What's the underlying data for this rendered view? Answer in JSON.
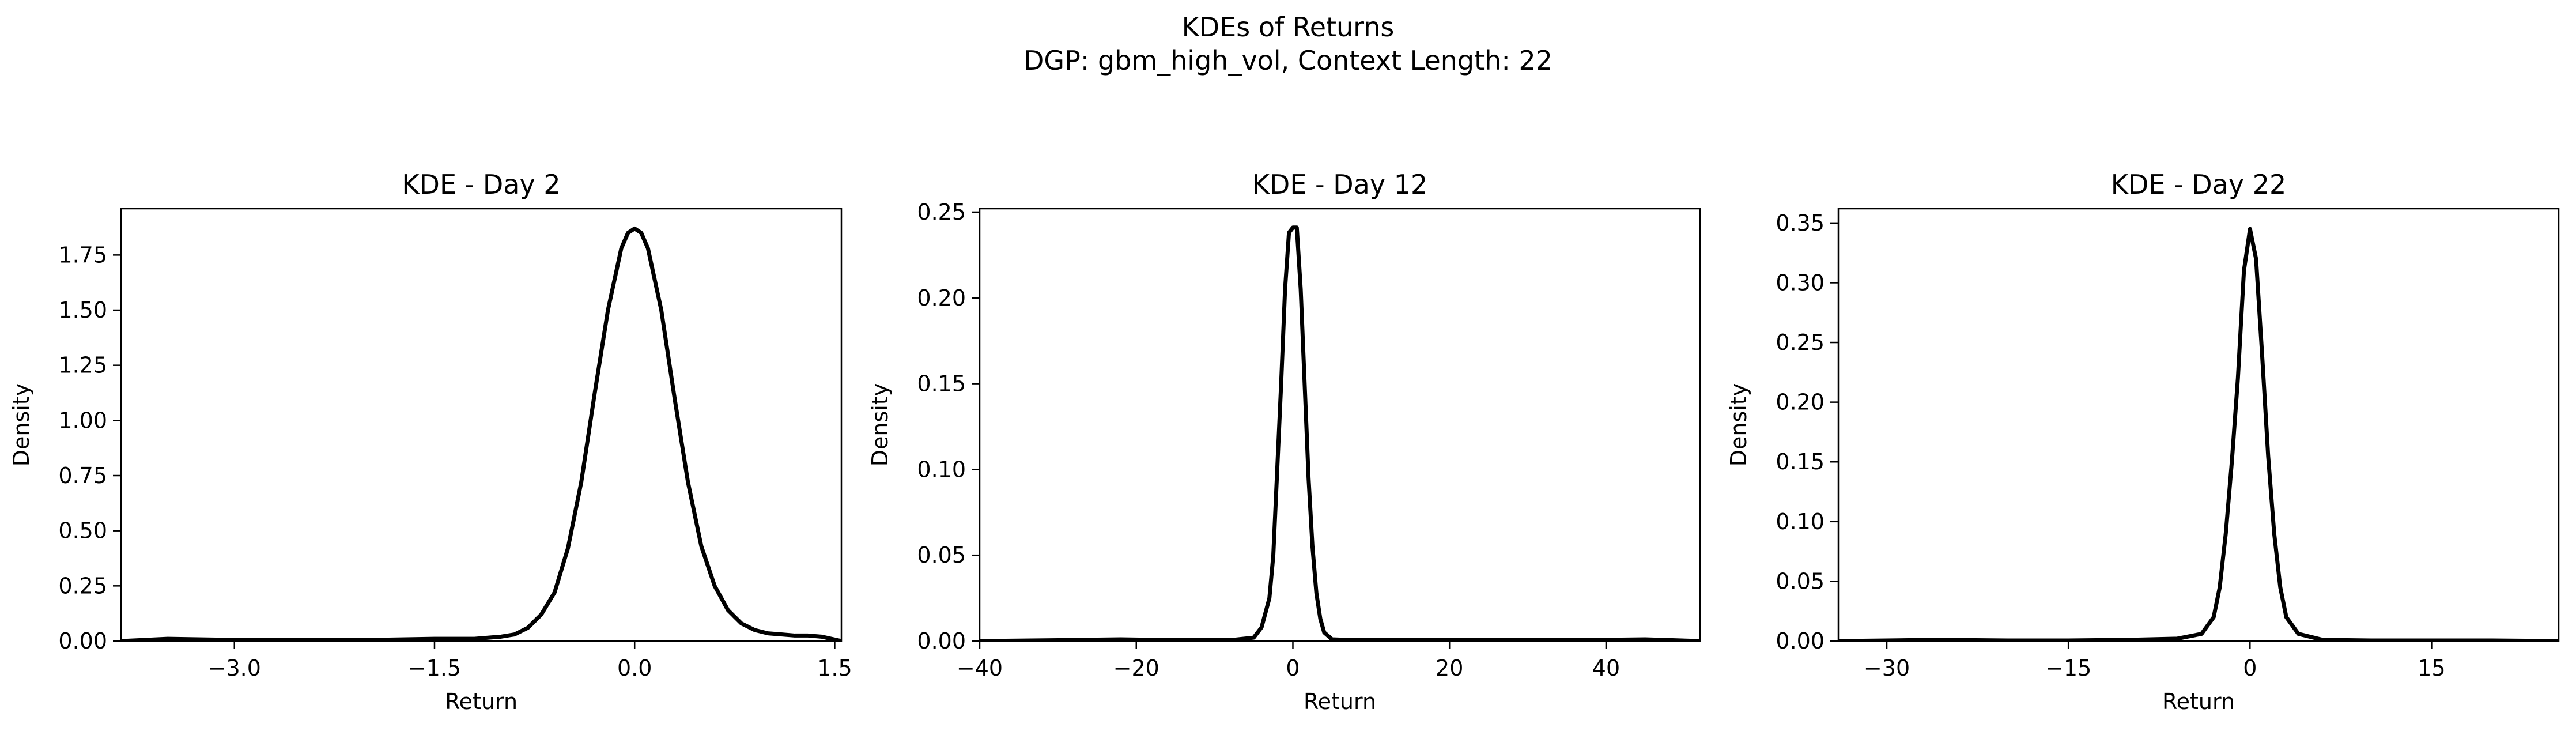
{
  "figure": {
    "title_line1": "KDEs of Returns",
    "title_line2": "DGP: gbm_high_vol, Context Length: 22"
  },
  "chart_data": [
    {
      "type": "line",
      "title": "KDE - Day 2",
      "xlabel": "Return",
      "ylabel": "Density",
      "xlim": [
        -3.85,
        1.55
      ],
      "ylim": [
        0,
        1.96
      ],
      "xticks": [
        -3.0,
        -1.5,
        0.0,
        1.5
      ],
      "xtick_labels": [
        "−3.0",
        "−1.5",
        "0.0",
        "1.5"
      ],
      "yticks": [
        0,
        0.25,
        0.5,
        0.75,
        1.0,
        1.25,
        1.5,
        1.75
      ],
      "ytick_labels": [
        "0.00",
        "0.25",
        "0.50",
        "0.75",
        "1.00",
        "1.25",
        "1.50",
        "1.75"
      ],
      "grid": false,
      "series": [
        {
          "color": "#000000",
          "x": [
            -3.85,
            -3.5,
            -3.0,
            -2.5,
            -2.0,
            -1.5,
            -1.2,
            -1.0,
            -0.9,
            -0.8,
            -0.7,
            -0.6,
            -0.5,
            -0.4,
            -0.3,
            -0.2,
            -0.1,
            -0.05,
            0.0,
            0.05,
            0.1,
            0.2,
            0.3,
            0.4,
            0.5,
            0.6,
            0.7,
            0.8,
            0.9,
            1.0,
            1.1,
            1.2,
            1.3,
            1.4,
            1.55
          ],
          "y": [
            0.0,
            0.01,
            0.005,
            0.005,
            0.005,
            0.01,
            0.01,
            0.02,
            0.03,
            0.06,
            0.12,
            0.22,
            0.42,
            0.72,
            1.12,
            1.5,
            1.78,
            1.85,
            1.87,
            1.85,
            1.78,
            1.5,
            1.1,
            0.72,
            0.43,
            0.25,
            0.14,
            0.08,
            0.05,
            0.035,
            0.03,
            0.025,
            0.025,
            0.02,
            0.0
          ]
        }
      ]
    },
    {
      "type": "line",
      "title": "KDE - Day 12",
      "xlabel": "Return",
      "ylabel": "Density",
      "xlim": [
        -40,
        52
      ],
      "ylim": [
        0,
        0.252
      ],
      "xticks": [
        -40,
        -20,
        0,
        20,
        40
      ],
      "xtick_labels": [
        "−40",
        "−20",
        "0",
        "20",
        "40"
      ],
      "yticks": [
        0,
        0.05,
        0.1,
        0.15,
        0.2,
        0.25
      ],
      "ytick_labels": [
        "0.00",
        "0.05",
        "0.10",
        "0.15",
        "0.20",
        "0.25"
      ],
      "grid": false,
      "series": [
        {
          "color": "#000000",
          "x": [
            -40,
            -30,
            -22,
            -15,
            -8,
            -5,
            -4,
            -3,
            -2.5,
            -2,
            -1.5,
            -1,
            -0.5,
            0,
            0.5,
            1,
            1.5,
            2,
            2.5,
            3,
            3.5,
            4,
            5,
            8,
            15,
            25,
            35,
            45,
            52
          ],
          "y": [
            0.0,
            0.0005,
            0.001,
            0.0005,
            0.0005,
            0.002,
            0.008,
            0.025,
            0.05,
            0.1,
            0.15,
            0.205,
            0.238,
            0.241,
            0.241,
            0.205,
            0.15,
            0.095,
            0.055,
            0.028,
            0.013,
            0.005,
            0.001,
            0.0005,
            0.0005,
            0.0005,
            0.0005,
            0.001,
            0.0
          ]
        }
      ]
    },
    {
      "type": "line",
      "title": "KDE - Day 22",
      "xlabel": "Return",
      "ylabel": "Density",
      "xlim": [
        -34,
        25.5
      ],
      "ylim": [
        0,
        0.362
      ],
      "xticks": [
        -30,
        -15,
        0,
        15
      ],
      "xtick_labels": [
        "−30",
        "−15",
        "0",
        "15"
      ],
      "yticks": [
        0,
        0.05,
        0.1,
        0.15,
        0.2,
        0.25,
        0.3,
        0.35
      ],
      "ytick_labels": [
        "0.00",
        "0.05",
        "0.10",
        "0.15",
        "0.20",
        "0.25",
        "0.30",
        "0.35"
      ],
      "grid": false,
      "series": [
        {
          "color": "#000000",
          "x": [
            -34,
            -30,
            -26,
            -20,
            -15,
            -10,
            -6,
            -4,
            -3,
            -2.5,
            -2,
            -1.5,
            -1,
            -0.5,
            0,
            0.5,
            1,
            1.5,
            2,
            2.5,
            3,
            4,
            6,
            10,
            15,
            20,
            25.5
          ],
          "y": [
            0.0,
            0.0005,
            0.001,
            0.0005,
            0.0005,
            0.001,
            0.002,
            0.006,
            0.02,
            0.045,
            0.09,
            0.15,
            0.22,
            0.31,
            0.345,
            0.32,
            0.24,
            0.155,
            0.09,
            0.045,
            0.02,
            0.006,
            0.001,
            0.0005,
            0.0005,
            0.0005,
            0.0
          ]
        }
      ]
    }
  ]
}
